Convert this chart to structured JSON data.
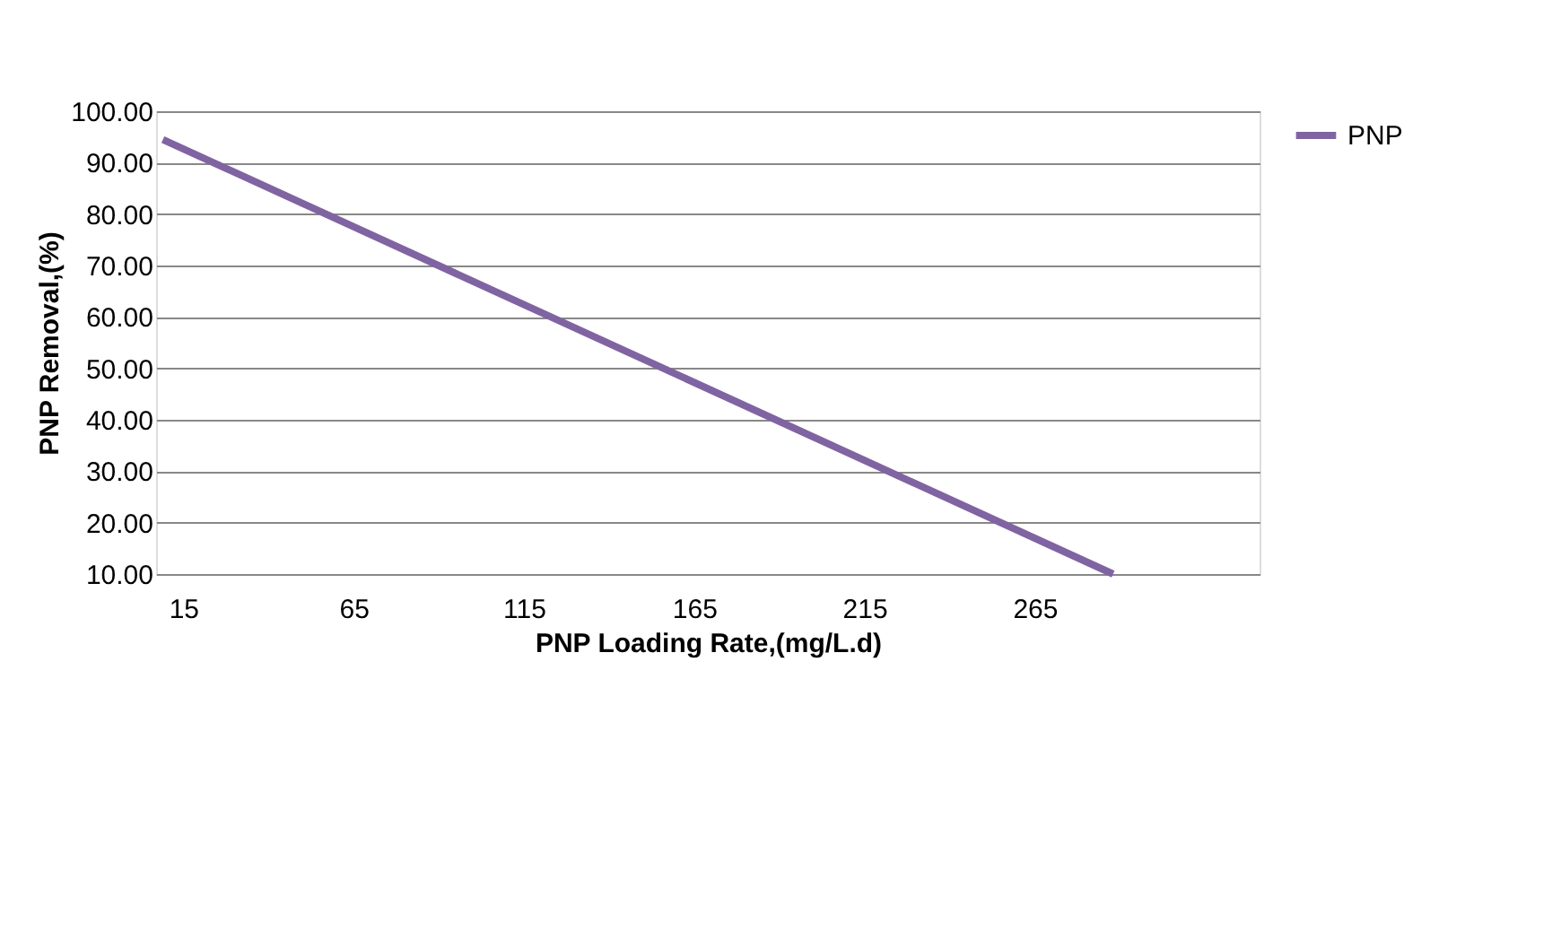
{
  "chart_data": {
    "type": "line",
    "xlabel": "PNP Loading Rate,(mg/L.d)",
    "ylabel": "PNP Removal,(%)",
    "series": [
      {
        "name": "PNP",
        "color": "#8064a2",
        "x": [
          9,
          288
        ],
        "values": [
          94.5,
          10
        ]
      }
    ],
    "xlim": [
      7,
      331
    ],
    "xticks": [
      15,
      65,
      115,
      165,
      215,
      265
    ],
    "ylim": [
      10,
      100
    ],
    "yticks": [
      {
        "value": 10,
        "label": "10.00"
      },
      {
        "value": 20,
        "label": "20.00"
      },
      {
        "value": 30,
        "label": "30.00"
      },
      {
        "value": 40,
        "label": "40.00"
      },
      {
        "value": 50,
        "label": "50.00"
      },
      {
        "value": 60,
        "label": "60.00"
      },
      {
        "value": 70,
        "label": "70.00"
      },
      {
        "value": 80,
        "label": "80.00"
      },
      {
        "value": 90,
        "label": "90.00"
      },
      {
        "value": 100,
        "label": "100.00"
      }
    ],
    "grid": "y",
    "legend": "right",
    "marker": "none",
    "line_style": "solid"
  }
}
